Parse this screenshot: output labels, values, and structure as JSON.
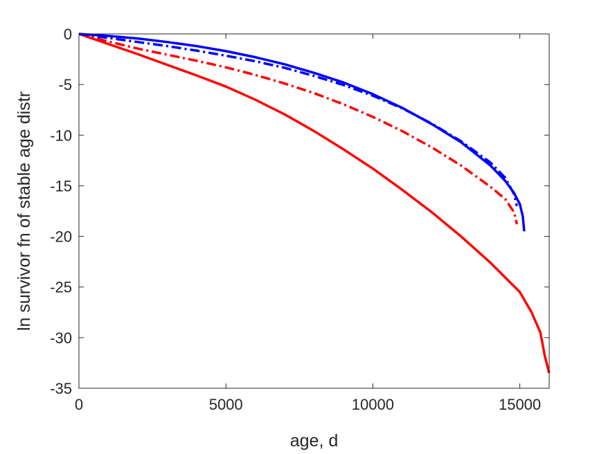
{
  "chart_data": {
    "type": "line",
    "title": "",
    "xlabel": "age, d",
    "ylabel": "ln survivor fn of stable age distr",
    "xlim": [
      0,
      16000
    ],
    "ylim": [
      -35,
      0
    ],
    "xticks": [
      0,
      5000,
      10000,
      15000
    ],
    "xtick_labels": [
      "0",
      "5000",
      "10000",
      "15000"
    ],
    "yticks": [
      0,
      -5,
      -10,
      -15,
      -20,
      -25,
      -30,
      -35
    ],
    "ytick_labels": [
      "0",
      "-5",
      "-10",
      "-15",
      "-20",
      "-25",
      "-30",
      "-35"
    ],
    "grid": false,
    "legend": "none",
    "series": [
      {
        "color": "#ff0000",
        "style": "solid",
        "x": [
          0,
          1000,
          2000,
          3000,
          4000,
          5000,
          6000,
          7000,
          8000,
          9000,
          10000,
          11000,
          12000,
          13000,
          14000,
          15000,
          15400,
          15700,
          15850,
          16000
        ],
        "y": [
          0,
          -1.0,
          -2.0,
          -3.05,
          -4.1,
          -5.2,
          -6.5,
          -7.95,
          -9.6,
          -11.4,
          -13.3,
          -15.4,
          -17.6,
          -20.0,
          -22.6,
          -25.5,
          -27.5,
          -29.5,
          -31.8,
          -33.5
        ]
      },
      {
        "color": "#ff0000",
        "style": "dashdot",
        "x": [
          0,
          1000,
          2000,
          3000,
          4000,
          5000,
          6000,
          7000,
          8000,
          9000,
          10000,
          11000,
          12000,
          13000,
          14000,
          14500,
          14800,
          14900
        ],
        "y": [
          0,
          -0.75,
          -1.45,
          -2.05,
          -2.65,
          -3.3,
          -4.05,
          -4.9,
          -5.85,
          -6.95,
          -8.2,
          -9.6,
          -11.2,
          -13.0,
          -15.1,
          -16.3,
          -17.6,
          -18.8
        ]
      },
      {
        "color": "#0000ff",
        "style": "dashdot",
        "x": [
          0,
          1000,
          2000,
          3000,
          4000,
          5000,
          6000,
          7000,
          8000,
          9000,
          10000,
          11000,
          12000,
          13000,
          14000,
          14500,
          14800,
          14900
        ],
        "y": [
          0,
          -0.4,
          -0.8,
          -1.2,
          -1.65,
          -2.15,
          -2.7,
          -3.35,
          -4.15,
          -5.05,
          -6.1,
          -7.35,
          -8.85,
          -10.6,
          -12.7,
          -14.2,
          -15.8,
          -17.0
        ]
      },
      {
        "color": "#0000ff",
        "style": "solid",
        "x": [
          0,
          1000,
          2000,
          3000,
          4000,
          5000,
          6000,
          7000,
          8000,
          9000,
          10000,
          11000,
          12000,
          13000,
          14000,
          14500,
          14800,
          15000,
          15100,
          15150
        ],
        "y": [
          0,
          -0.2,
          -0.45,
          -0.8,
          -1.2,
          -1.7,
          -2.3,
          -3.0,
          -3.85,
          -4.8,
          -5.95,
          -7.3,
          -8.9,
          -10.7,
          -13.0,
          -14.5,
          -15.7,
          -16.8,
          -18.0,
          -19.5
        ]
      }
    ]
  }
}
